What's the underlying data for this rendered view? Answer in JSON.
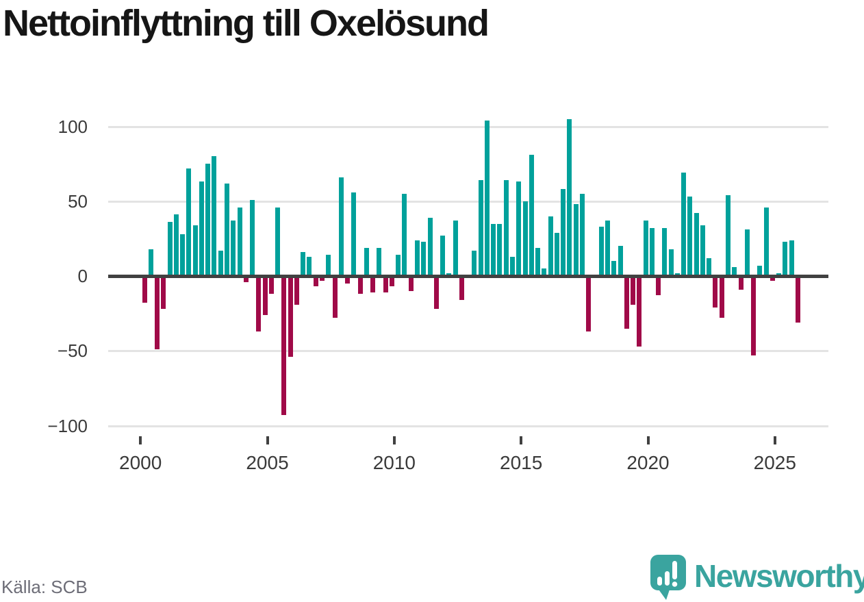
{
  "title": "Nettoinflyttning till Oxelösund",
  "source": "Källa: SCB",
  "branding": {
    "wordmark": "Newsworthy",
    "logo_icon": "speech-bubble-bar-chart-icon"
  },
  "colors": {
    "positive_bar": "#00a19b",
    "negative_bar": "#a00a48",
    "axis": "#414141",
    "gridline": "#e3e3e3",
    "tick_label": "#3a3a3a",
    "source_text": "#6d6d77",
    "brand_teal": "#3aa49f",
    "title_text": "#161616",
    "background": "#ffffff"
  },
  "chart_data": {
    "type": "bar",
    "title": "Nettoinflyttning till Oxelösund",
    "xlabel": "",
    "ylabel": "",
    "x_unit": "quarter",
    "grid": "horizontal",
    "legend": "none",
    "ylim": [
      -112,
      112
    ],
    "yticks": [
      100,
      50,
      0,
      -50,
      -100
    ],
    "yticklabels": [
      "100",
      "50",
      "0",
      "−50",
      "−100"
    ],
    "xticks": [
      2000,
      2005,
      2010,
      2015,
      2020,
      2025
    ],
    "xticklabels": [
      "2000",
      "2005",
      "2010",
      "2015",
      "2020",
      "2025"
    ],
    "categories": [
      "2000 Q1",
      "2000 Q2",
      "2000 Q3",
      "2000 Q4",
      "2001 Q1",
      "2001 Q2",
      "2001 Q3",
      "2001 Q4",
      "2002 Q1",
      "2002 Q2",
      "2002 Q3",
      "2002 Q4",
      "2003 Q1",
      "2003 Q2",
      "2003 Q3",
      "2003 Q4",
      "2004 Q1",
      "2004 Q2",
      "2004 Q3",
      "2004 Q4",
      "2005 Q1",
      "2005 Q2",
      "2005 Q3",
      "2005 Q4",
      "2006 Q1",
      "2006 Q2",
      "2006 Q3",
      "2006 Q4",
      "2007 Q1",
      "2007 Q2",
      "2007 Q3",
      "2007 Q4",
      "2008 Q1",
      "2008 Q2",
      "2008 Q3",
      "2008 Q4",
      "2009 Q1",
      "2009 Q2",
      "2009 Q3",
      "2009 Q4",
      "2010 Q1",
      "2010 Q2",
      "2010 Q3",
      "2010 Q4",
      "2011 Q1",
      "2011 Q2",
      "2011 Q3",
      "2011 Q4",
      "2012 Q1",
      "2012 Q2",
      "2012 Q3",
      "2012 Q4",
      "2013 Q1",
      "2013 Q2",
      "2013 Q3",
      "2013 Q4",
      "2014 Q1",
      "2014 Q2",
      "2014 Q3",
      "2014 Q4",
      "2015 Q1",
      "2015 Q2",
      "2015 Q3",
      "2015 Q4",
      "2016 Q1",
      "2016 Q2",
      "2016 Q3",
      "2016 Q4",
      "2017 Q1",
      "2017 Q2",
      "2017 Q3",
      "2017 Q4",
      "2018 Q1",
      "2018 Q2",
      "2018 Q3",
      "2018 Q4",
      "2019 Q1",
      "2019 Q2",
      "2019 Q3",
      "2019 Q4",
      "2020 Q1",
      "2020 Q2",
      "2020 Q3",
      "2020 Q4",
      "2021 Q1",
      "2021 Q2",
      "2021 Q3",
      "2021 Q4",
      "2022 Q1",
      "2022 Q2",
      "2022 Q3",
      "2022 Q4",
      "2023 Q1",
      "2023 Q2",
      "2023 Q3",
      "2023 Q4",
      "2024 Q1",
      "2024 Q2",
      "2024 Q3",
      "2024 Q4",
      "2025 Q1",
      "2025 Q2",
      "2025 Q3",
      "2025 Q4"
    ],
    "values": [
      -18,
      18,
      -49,
      -22,
      36,
      41,
      28,
      72,
      34,
      63,
      75,
      80,
      17,
      62,
      37,
      46,
      -4,
      51,
      -37,
      -26,
      -12,
      46,
      -93,
      -54,
      -19,
      16,
      13,
      -7,
      -3,
      14,
      -28,
      66,
      -5,
      56,
      -12,
      19,
      -11,
      19,
      -11,
      -7,
      14,
      55,
      -10,
      24,
      23,
      39,
      -22,
      27,
      2,
      37,
      -16,
      0,
      17,
      64,
      104,
      35,
      35,
      64,
      13,
      63,
      50,
      81,
      19,
      5,
      40,
      29,
      58,
      105,
      48,
      55,
      -37,
      0,
      33,
      37,
      10,
      20,
      -35,
      -19,
      -47,
      37,
      32,
      -13,
      32,
      18,
      2,
      69,
      53,
      42,
      34,
      12,
      -21,
      -28,
      54,
      6,
      -9,
      31,
      -53,
      7,
      46,
      -3,
      2,
      23,
      24,
      -31
    ]
  }
}
